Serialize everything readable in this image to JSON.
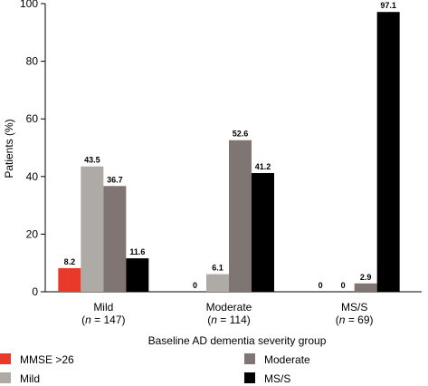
{
  "chart_data": {
    "type": "bar",
    "xlabel": "Baseline AD dementia severity group",
    "ylabel": "Patients (%)",
    "ylim": [
      0,
      100
    ],
    "yticks": [
      0,
      20,
      40,
      60,
      80,
      100
    ],
    "grid": false,
    "legend_position": "bottom",
    "categories": [
      {
        "name": "Mild",
        "n_label": "(n = 147)",
        "n_prefix": "(",
        "n_var": "n",
        "n_suffix": " = 147)"
      },
      {
        "name": "Moderate",
        "n_label": "(n = 114)",
        "n_prefix": "(",
        "n_var": "n",
        "n_suffix": " = 114)"
      },
      {
        "name": "MS/S",
        "n_label": "(n = 69)",
        "n_prefix": "(",
        "n_var": "n",
        "n_suffix": " = 69)"
      }
    ],
    "series": [
      {
        "name": "MMSE >26",
        "color": "#e8392a",
        "values": [
          8.2,
          0,
          0
        ],
        "labels": [
          "8.2",
          "0",
          "0"
        ]
      },
      {
        "name": "Mild",
        "color": "#aeaaa6",
        "values": [
          43.5,
          6.1,
          0
        ],
        "labels": [
          "43.5",
          "6.1",
          "0"
        ]
      },
      {
        "name": "Moderate",
        "color": "#7f7573",
        "values": [
          36.7,
          52.6,
          2.9
        ],
        "labels": [
          "36.7",
          "52.6",
          "2.9"
        ]
      },
      {
        "name": "MS/S",
        "color": "#000000",
        "values": [
          11.6,
          41.2,
          97.1
        ],
        "labels": [
          "11.6",
          "41.2",
          "97.1"
        ]
      }
    ]
  }
}
